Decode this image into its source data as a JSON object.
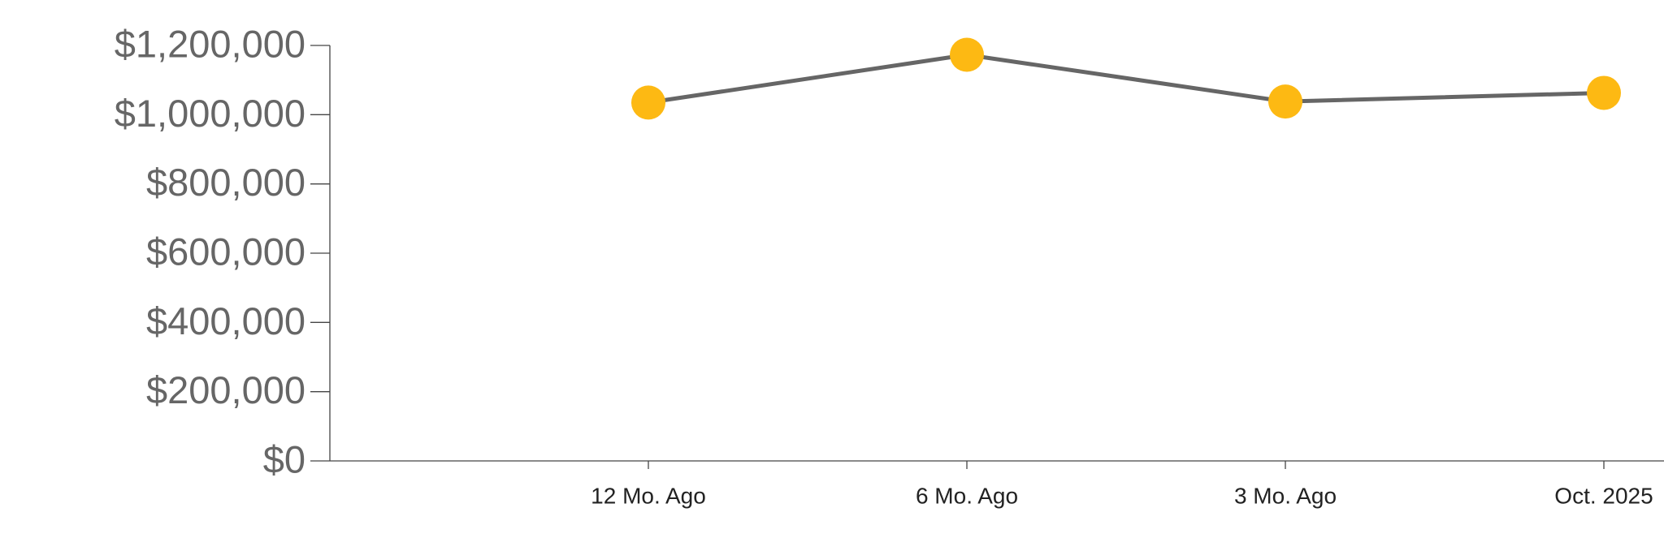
{
  "chart_data": {
    "type": "line",
    "categories": [
      "12 Mo. Ago",
      "6 Mo. Ago",
      "3 Mo. Ago",
      "Oct. 2025"
    ],
    "series": [
      {
        "color": "#fdb913",
        "line_color": "#666666",
        "values": [
          1035000,
          1173000,
          1038000,
          1063000
        ]
      }
    ],
    "ylim": [
      0,
      1200000
    ],
    "yticks": [
      {
        "value": 0,
        "label": "$0"
      },
      {
        "value": 200000,
        "label": "$200,000"
      },
      {
        "value": 400000,
        "label": "$400,000"
      },
      {
        "value": 600000,
        "label": "$600,000"
      },
      {
        "value": 800000,
        "label": "$800,000"
      },
      {
        "value": 1000000,
        "label": "$1,000,000"
      },
      {
        "value": 1200000,
        "label": "$1,200,000"
      }
    ]
  }
}
